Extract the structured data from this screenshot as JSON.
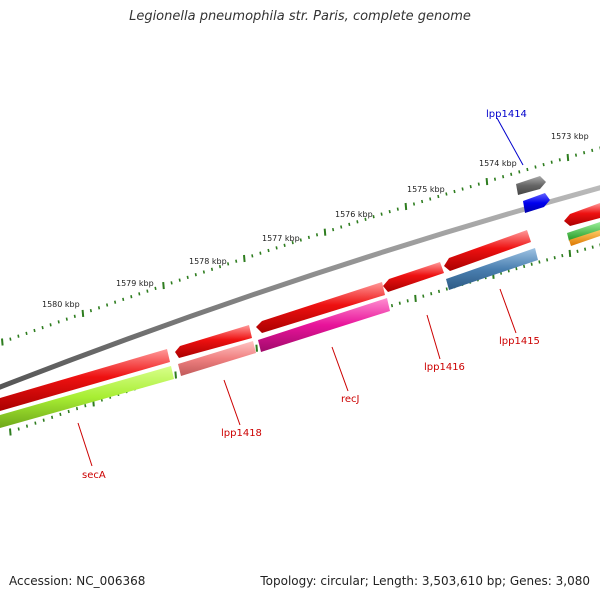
{
  "title": "Legionella pneumophila str. Paris, complete genome",
  "footer": {
    "accession": "Accession: NC_006368",
    "topology": "Topology: circular; Length: 3,503,610 bp; Genes: 3,080"
  },
  "scale_labels": [
    "1573 kbp",
    "1574 kbp",
    "1575 kbp",
    "1576 kbp",
    "1577 kbp",
    "1578 kbp",
    "1579 kbp",
    "1580 kbp"
  ],
  "gene_labels": [
    {
      "name": "lpp1414",
      "text": "lpp1414",
      "color": "#0000cc"
    },
    {
      "name": "lpp1415",
      "text": "lpp1415",
      "color": "#cc0000"
    },
    {
      "name": "lpp1416",
      "text": "lpp1416",
      "color": "#cc0000"
    },
    {
      "name": "recj",
      "text": "recJ",
      "color": "#cc0000"
    },
    {
      "name": "lpp1418",
      "text": "lpp1418",
      "color": "#cc0000"
    },
    {
      "name": "seca",
      "text": "secA",
      "color": "#cc0000"
    }
  ],
  "colors": {
    "backbone": "#888888",
    "tick": "#2e7d1f",
    "cds_forward": "#ee1111",
    "lpp1414_top": "#666666",
    "lpp1414_bottom": "#0000ee",
    "lpp1415": "#4a7fb0",
    "recj": "#e8139a",
    "lpp1418": "#f08080",
    "seca": "#a8ee33",
    "right_green": "#33bb33",
    "right_orange": "#ff9900"
  }
}
